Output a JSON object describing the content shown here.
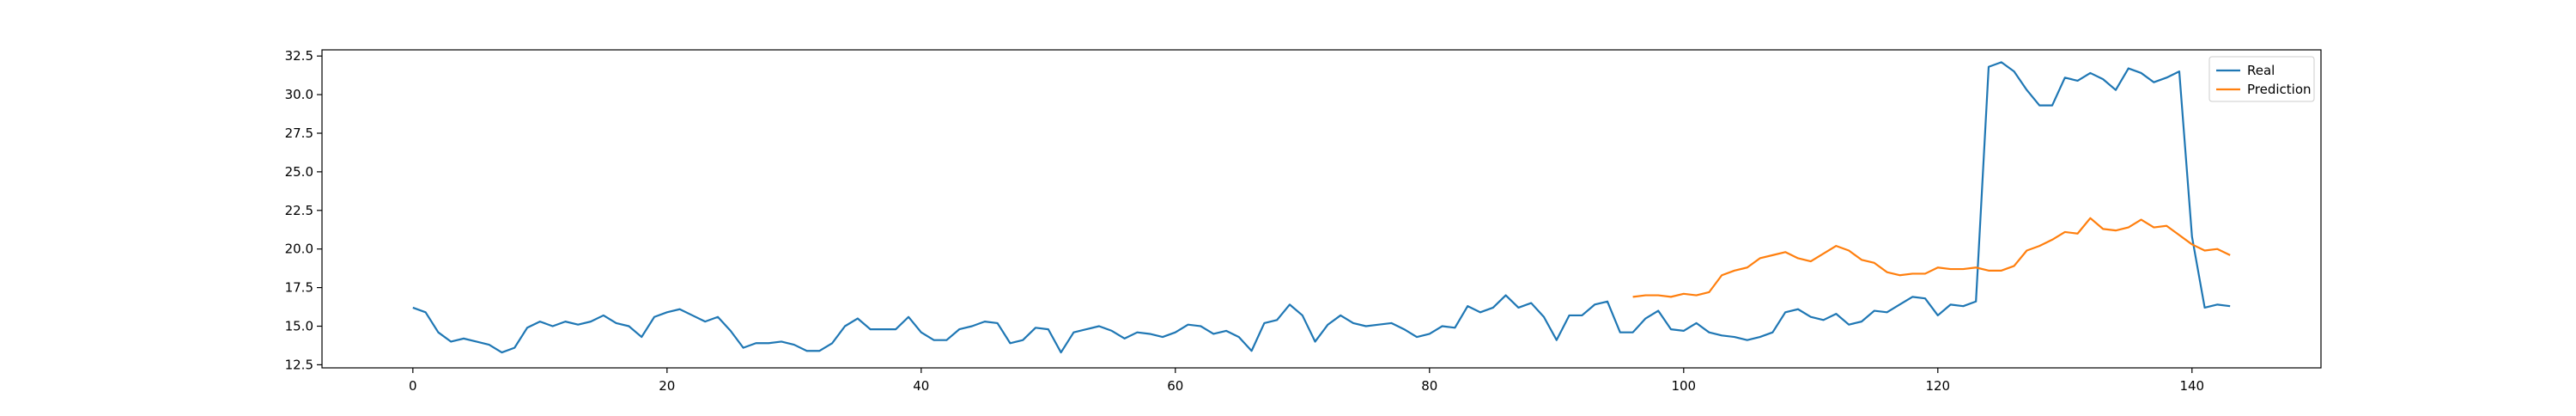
{
  "chart_data": {
    "type": "line",
    "title": "",
    "xlabel": "",
    "ylabel": "",
    "xlim": [
      -7.15,
      150.15
    ],
    "ylim": [
      12.3,
      32.9
    ],
    "x_ticks": [
      0,
      20,
      40,
      60,
      80,
      100,
      120,
      140
    ],
    "y_ticks": [
      12.5,
      15.0,
      17.5,
      20.0,
      22.5,
      25.0,
      27.5,
      30.0,
      32.5
    ],
    "x_tick_labels": [
      "0",
      "20",
      "40",
      "60",
      "80",
      "100",
      "120",
      "140"
    ],
    "y_tick_labels": [
      "12.5",
      "15.0",
      "17.5",
      "20.0",
      "22.5",
      "25.0",
      "27.5",
      "30.0",
      "32.5"
    ],
    "grid": false,
    "legend_position": "top-right",
    "series": [
      {
        "name": "Real",
        "color": "#1f77b4",
        "x_start": 0,
        "values": [
          16.2,
          15.9,
          14.6,
          14.0,
          14.2,
          14.0,
          13.8,
          13.3,
          13.6,
          14.9,
          15.3,
          15.0,
          15.3,
          15.1,
          15.3,
          15.7,
          15.2,
          15.0,
          14.3,
          15.6,
          15.9,
          16.1,
          15.7,
          15.3,
          15.6,
          14.7,
          13.6,
          13.9,
          13.9,
          14.0,
          13.8,
          13.4,
          13.4,
          13.9,
          15.0,
          15.5,
          14.8,
          14.8,
          14.8,
          15.6,
          14.6,
          14.1,
          14.1,
          14.8,
          15.0,
          15.3,
          15.2,
          13.9,
          14.1,
          14.9,
          14.8,
          13.3,
          14.6,
          14.8,
          15.0,
          14.7,
          14.2,
          14.6,
          14.5,
          14.3,
          14.6,
          15.1,
          15.0,
          14.5,
          14.7,
          14.3,
          13.4,
          15.2,
          15.4,
          16.4,
          15.7,
          14.0,
          15.1,
          15.7,
          15.2,
          15.0,
          15.1,
          15.2,
          14.8,
          14.3,
          14.5,
          15.0,
          14.9,
          16.3,
          15.9,
          16.2,
          17.0,
          16.2,
          16.5,
          15.6,
          14.1,
          15.7,
          15.7,
          16.4,
          16.6,
          14.6,
          14.6,
          15.5,
          16.0,
          14.8,
          14.7,
          15.2,
          14.6,
          14.4,
          14.3,
          14.1,
          14.3,
          14.6,
          15.9,
          16.1,
          15.6,
          15.4,
          15.8,
          15.1,
          15.3,
          16.0,
          15.9,
          16.4,
          16.9,
          16.8,
          15.7,
          16.4,
          16.3,
          16.6,
          31.8,
          32.1,
          31.5,
          30.3,
          29.3,
          29.3,
          31.1,
          30.9,
          31.4,
          31.0,
          30.3,
          31.7,
          31.4,
          30.8,
          31.1,
          31.5,
          20.8,
          16.2,
          16.4,
          16.3
        ]
      },
      {
        "name": "Prediction",
        "color": "#ff7f0e",
        "x_start": 96,
        "values": [
          16.9,
          17.0,
          17.0,
          16.9,
          17.1,
          17.0,
          17.2,
          18.3,
          18.6,
          18.8,
          19.4,
          19.6,
          19.8,
          19.4,
          19.2,
          19.7,
          20.2,
          19.9,
          19.3,
          19.1,
          18.5,
          18.3,
          18.4,
          18.4,
          18.8,
          18.7,
          18.7,
          18.8,
          18.6,
          18.6,
          18.9,
          19.9,
          20.2,
          20.6,
          21.1,
          21.0,
          22.0,
          21.3,
          21.2,
          21.4,
          21.9,
          21.4,
          21.5,
          20.9,
          20.3,
          19.9,
          20.0,
          19.6
        ]
      }
    ]
  }
}
